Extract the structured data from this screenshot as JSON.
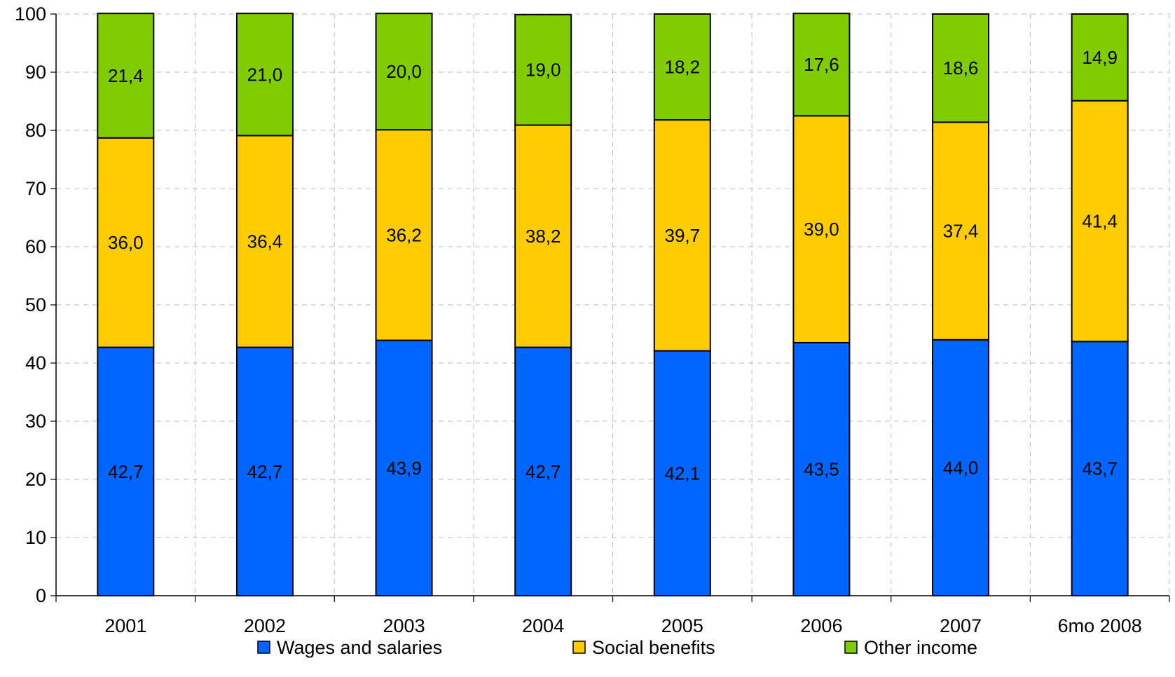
{
  "chart_data": {
    "type": "bar",
    "stacked": true,
    "categories": [
      "2001",
      "2002",
      "2003",
      "2004",
      "2005",
      "2006",
      "2007",
      "6mo 2008"
    ],
    "series": [
      {
        "name": "Wages and salaries",
        "color": "#0066ff",
        "values": [
          42.7,
          42.7,
          43.9,
          42.7,
          42.1,
          43.5,
          44.0,
          43.7
        ],
        "labels": [
          "42,7",
          "42,7",
          "43,9",
          "42,7",
          "42,1",
          "43,5",
          "44,0",
          "43,7"
        ]
      },
      {
        "name": "Social benefits",
        "color": "#ffcc00",
        "values": [
          36.0,
          36.4,
          36.2,
          38.2,
          39.7,
          39.0,
          37.4,
          41.4
        ],
        "labels": [
          "36,0",
          "36,4",
          "36,2",
          "38,2",
          "39,7",
          "39,0",
          "37,4",
          "41,4"
        ]
      },
      {
        "name": "Other income",
        "color": "#80cc00",
        "values": [
          21.4,
          21.0,
          20.0,
          19.0,
          18.2,
          17.6,
          18.6,
          14.9
        ],
        "labels": [
          "21,4",
          "21,0",
          "20,0",
          "19,0",
          "18,2",
          "17,6",
          "18,6",
          "14,9"
        ]
      }
    ],
    "ylim": [
      0,
      100
    ],
    "yticks": [
      "0",
      "10",
      "20",
      "30",
      "40",
      "50",
      "60",
      "70",
      "80",
      "90",
      "100"
    ],
    "grid": true,
    "legend_position": "bottom",
    "title": "",
    "xlabel": "",
    "ylabel": ""
  }
}
